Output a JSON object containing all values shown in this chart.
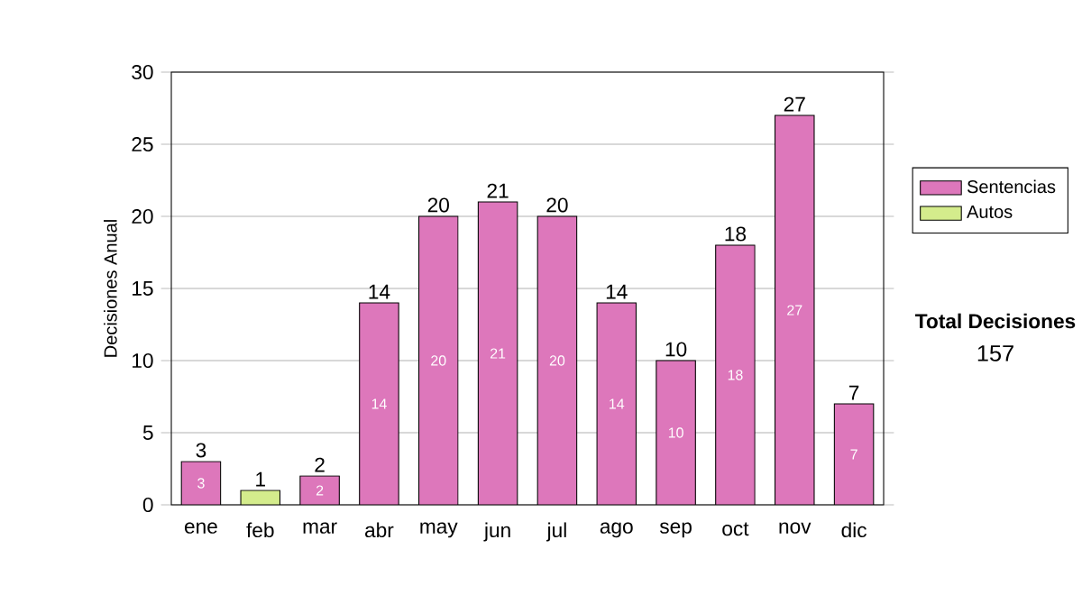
{
  "chart_data": {
    "type": "bar",
    "stacked": true,
    "categories": [
      "ene",
      "feb",
      "mar",
      "abr",
      "may",
      "jun",
      "jul",
      "ago",
      "sep",
      "oct",
      "nov",
      "dic"
    ],
    "ylabel": "Decisiones Anual",
    "ylim": [
      0,
      30
    ],
    "yticks": [
      0,
      5,
      10,
      15,
      20,
      25,
      30
    ],
    "grid": "y",
    "legend": "right",
    "series": [
      {
        "name": "Sentencias",
        "color": "#dd77bb",
        "values": [
          3,
          null,
          2,
          14,
          20,
          21,
          20,
          14,
          10,
          18,
          27,
          7
        ],
        "value_labels": [
          "3",
          null,
          "2",
          "14",
          "20",
          "21",
          "20",
          "14",
          "10",
          "18",
          "27",
          "7"
        ]
      },
      {
        "name": "Autos",
        "color": "#d4ec8c",
        "values": [
          null,
          1,
          null,
          null,
          null,
          null,
          null,
          null,
          null,
          null,
          null,
          null
        ]
      }
    ],
    "totals": [
      "3",
      "1",
      "2",
      "14",
      "20",
      "21",
      "20",
      "14",
      "10",
      "18",
      "27",
      "7"
    ],
    "annotations": [
      "Total Decisiones",
      "157"
    ]
  }
}
